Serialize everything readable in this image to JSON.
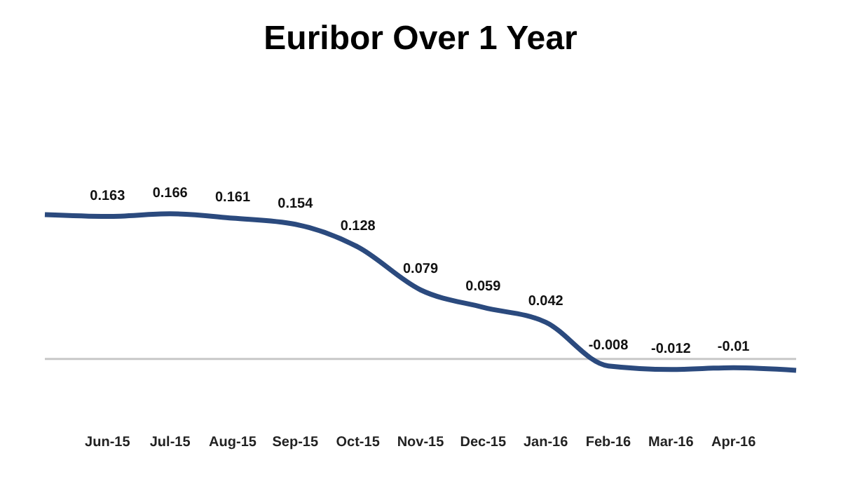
{
  "chart_data": {
    "type": "line",
    "title": "Euribor Over 1 Year",
    "categories": [
      null,
      "Jun-15",
      "Jul-15",
      "Aug-15",
      "Sep-15",
      "Oct-15",
      "Nov-15",
      "Dec-15",
      "Jan-16",
      "Feb-16",
      "Mar-16",
      "Apr-16",
      null
    ],
    "series": [
      {
        "color": "#2b4a7e",
        "values": [
          0.165,
          0.163,
          0.166,
          0.161,
          0.154,
          0.128,
          0.079,
          0.059,
          0.042,
          -0.008,
          -0.012,
          -0.01,
          -0.013
        ],
        "value_labels": [
          null,
          "0.163",
          "0.166",
          "0.161",
          "0.154",
          "0.128",
          "0.079",
          "0.059",
          "0.042",
          "-0.008",
          "-0.012",
          "-0.01",
          null
        ]
      }
    ],
    "ref_lines": [
      {
        "axis": "y",
        "value": 0,
        "color": "#c8c8c8"
      }
    ],
    "marker": "none",
    "legend": false,
    "grid": false
  }
}
